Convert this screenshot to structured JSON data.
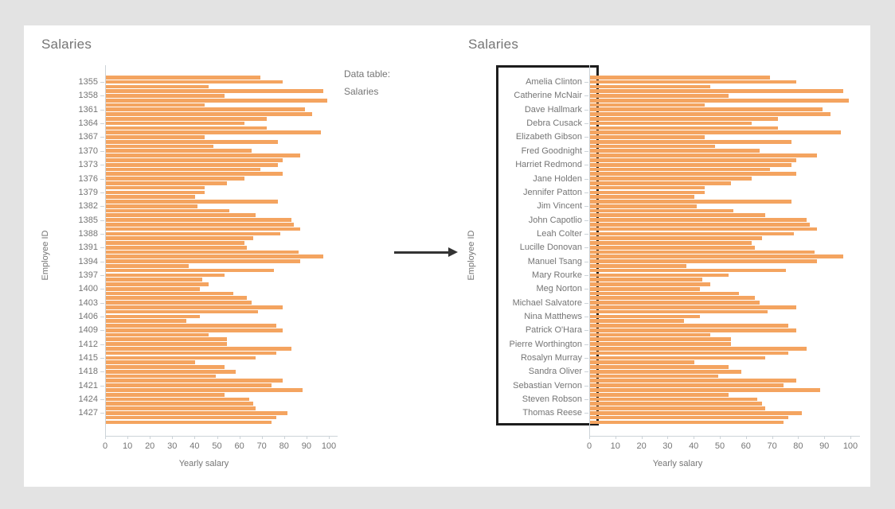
{
  "page": {
    "background": "#e3e3e3",
    "card_background": "#ffffff"
  },
  "colors": {
    "bar": "#f4a460",
    "axis": "#ccd3d8",
    "text": "#757575",
    "arrow": "#333333",
    "highlight_box": "#1d1d1d"
  },
  "annotation": {
    "line1": "Data table:",
    "line2": "Salaries",
    "arrow": "right-arrow from left chart to right chart",
    "highlight": "black rectangle around right chart category labels"
  },
  "chart_data": [
    {
      "type": "bar",
      "orientation": "horizontal",
      "title": "Salaries",
      "xlabel": "Yearly salary",
      "ylabel": "Employee ID",
      "xlim": [
        0,
        100
      ],
      "x_ticks": [
        0,
        10,
        20,
        30,
        40,
        50,
        60,
        70,
        80,
        90,
        100
      ],
      "grid": false,
      "legend": false,
      "category_tick_labels": [
        "1355",
        "1358",
        "1361",
        "1364",
        "1367",
        "1370",
        "1373",
        "1376",
        "1379",
        "1382",
        "1385",
        "1388",
        "1391",
        "1394",
        "1397",
        "1400",
        "1403",
        "1406",
        "1409",
        "1412",
        "1415",
        "1418",
        "1421",
        "1424",
        "1427"
      ],
      "tick_label_every_n_bars": 3,
      "first_labeled_bar_index": 1,
      "values": [
        69,
        79,
        46,
        97,
        53,
        99,
        44,
        89,
        92,
        72,
        62,
        72,
        96,
        44,
        77,
        48,
        65,
        87,
        79,
        77,
        69,
        79,
        62,
        54,
        44,
        44,
        40,
        77,
        41,
        55,
        67,
        83,
        84,
        87,
        78,
        66,
        62,
        63,
        86,
        97,
        87,
        37,
        75,
        53,
        43,
        46,
        42,
        57,
        63,
        65,
        79,
        68,
        42,
        36,
        76,
        79,
        46,
        54,
        54,
        83,
        76,
        67,
        40,
        53,
        58,
        49,
        79,
        74,
        88,
        53,
        64,
        66,
        67,
        81,
        76,
        74
      ]
    },
    {
      "type": "bar",
      "orientation": "horizontal",
      "title": "Salaries",
      "xlabel": "Yearly salary",
      "ylabel": "Employee ID",
      "xlim": [
        0,
        100
      ],
      "x_ticks": [
        0,
        10,
        20,
        30,
        40,
        50,
        60,
        70,
        80,
        90,
        100
      ],
      "grid": false,
      "legend": false,
      "highlight_box_around_labels": true,
      "category_tick_labels": [
        "Amelia Clinton",
        "Catherine McNair",
        "Dave Hallmark",
        "Debra Cusack",
        "Elizabeth Gibson",
        "Fred Goodnight",
        "Harriet Redmond",
        "Jane Holden",
        "Jennifer Patton",
        "Jim Vincent",
        "John Capotlio",
        "Leah Colter",
        "Lucille Donovan",
        "Manuel Tsang",
        "Mary Rourke",
        "Meg Norton",
        "Michael Salvatore",
        "Nina Matthews",
        "Patrick O'Hara",
        "Pierre Worthington",
        "Rosalyn Murray",
        "Sandra Oliver",
        "Sebastian Vernon",
        "Steven Robson",
        "Thomas Reese"
      ],
      "tick_label_every_n_bars": 3,
      "first_labeled_bar_index": 1,
      "values": [
        69,
        79,
        46,
        97,
        53,
        99,
        44,
        89,
        92,
        72,
        62,
        72,
        96,
        44,
        77,
        48,
        65,
        87,
        79,
        77,
        69,
        79,
        62,
        54,
        44,
        44,
        40,
        77,
        41,
        55,
        67,
        83,
        84,
        87,
        78,
        66,
        62,
        63,
        86,
        97,
        87,
        37,
        75,
        53,
        43,
        46,
        42,
        57,
        63,
        65,
        79,
        68,
        42,
        36,
        76,
        79,
        46,
        54,
        54,
        83,
        76,
        67,
        40,
        53,
        58,
        49,
        79,
        74,
        88,
        53,
        64,
        66,
        67,
        81,
        76,
        74
      ]
    }
  ]
}
